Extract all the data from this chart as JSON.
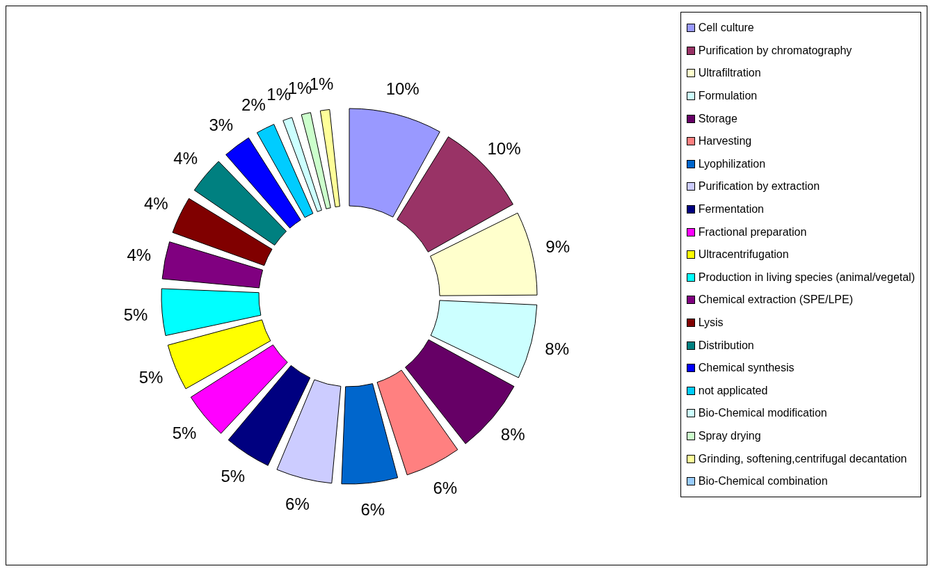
{
  "chart_data": {
    "type": "donut",
    "categories": [
      "Cell culture",
      "Purification by chromatography",
      "Ultrafiltration",
      "Formulation",
      "Storage",
      "Harvesting",
      "Lyophilization",
      "Purification by extraction",
      "Fermentation",
      "Fractional preparation",
      "Ultracentrifugation",
      "Production in living species (animal/vegetal)",
      "Chemical extraction (SPE/LPE)",
      "Lysis",
      "Distribution",
      "Chemical synthesis",
      "not applicated",
      "Bio-Chemical modification",
      "Spray drying",
      "Grinding, softening,centrifugal decantation",
      "Bio-Chemical combination"
    ],
    "values": [
      10,
      10,
      9,
      8,
      8,
      6,
      6,
      6,
      5,
      5,
      5,
      5,
      4,
      4,
      4,
      3,
      2,
      1,
      1,
      1,
      null
    ],
    "value_labels": [
      "10%",
      "10%",
      "9%",
      "8%",
      "8%",
      "6%",
      "6%",
      "6%",
      "5%",
      "5%",
      "5%",
      "5%",
      "4%",
      "4%",
      "4%",
      "3%",
      "2%",
      "1%",
      "1%",
      "1%",
      null
    ],
    "colors": [
      "#9999ff",
      "#993366",
      "#ffffcc",
      "#ccffff",
      "#660066",
      "#ff8080",
      "#0066cc",
      "#ccccff",
      "#000080",
      "#ff00ff",
      "#ffff00",
      "#00ffff",
      "#800080",
      "#800000",
      "#008080",
      "#0000ff",
      "#00ccff",
      "#ccffff",
      "#ccffcc",
      "#ffff99",
      "#99ccff"
    ],
    "legend": "right"
  }
}
